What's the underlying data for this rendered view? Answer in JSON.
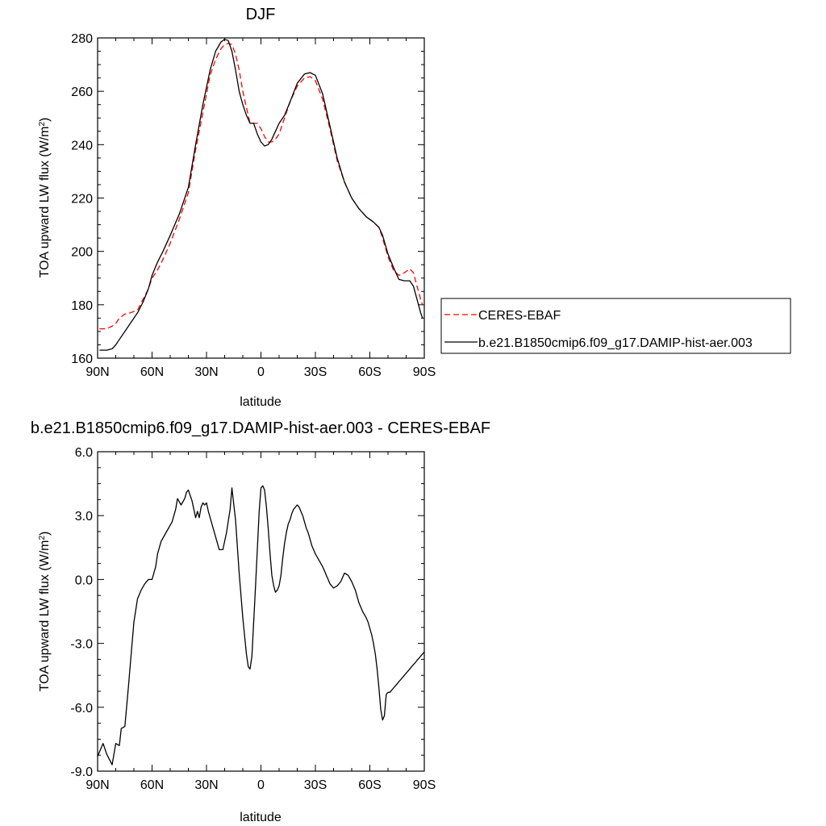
{
  "chart_data": [
    {
      "type": "line",
      "title": "DJF",
      "xlabel": "latitude",
      "ylabel": "TOA upward LW flux (W/m",
      "ylabel_sup": "2",
      "ylabel_end": ")",
      "xlim": [
        90,
        -90
      ],
      "ylim": [
        160,
        280
      ],
      "x_ticks": [
        90,
        60,
        30,
        0,
        -30,
        -60,
        -90
      ],
      "x_tick_labels": [
        "90N",
        "60N",
        "30N",
        "0",
        "30S",
        "60S",
        "90S"
      ],
      "y_ticks": [
        160,
        180,
        200,
        220,
        240,
        260,
        280
      ],
      "y_tick_labels": [
        "160",
        "180",
        "200",
        "220",
        "240",
        "260",
        "280"
      ],
      "legend_position": "right, outside",
      "series": [
        {
          "name": "CERES-EBAF",
          "color": "#ff0000",
          "dash": "dashed",
          "x": [
            89,
            85,
            82,
            80,
            78,
            75,
            72,
            70,
            68,
            65,
            62,
            60,
            57,
            54,
            50,
            45,
            40,
            36,
            32,
            28,
            25,
            22,
            20,
            18,
            16,
            14,
            12,
            10,
            8,
            6,
            4,
            2,
            0,
            -2,
            -4,
            -6,
            -8,
            -10,
            -13,
            -16,
            -20,
            -24,
            -27,
            -30,
            -34,
            -38,
            -42,
            -46,
            -50,
            -54,
            -58,
            -62,
            -65,
            -67,
            -70,
            -73,
            -76,
            -79,
            -82,
            -84,
            -86,
            -88,
            -89
          ],
          "values": [
            171,
            171,
            172,
            173,
            175,
            176.5,
            177,
            177.5,
            178,
            182,
            186,
            190,
            193,
            197,
            203,
            212,
            222,
            238,
            252,
            266,
            272,
            276,
            277.5,
            278,
            277.5,
            274,
            268,
            260,
            254,
            248,
            248,
            248,
            246,
            243,
            241,
            241,
            242,
            244,
            250,
            256,
            262,
            265,
            265.5,
            264,
            257,
            246,
            234,
            226,
            220,
            216,
            213,
            211,
            209,
            205,
            198,
            193,
            191,
            192,
            193.5,
            192,
            187,
            182,
            180
          ]
        },
        {
          "name": "b.e21.B1850cmip6.f09_g17.DAMIP-hist-aer.003",
          "color": "#000000",
          "dash": "solid",
          "x": [
            89,
            85,
            82,
            80,
            78,
            75,
            72,
            70,
            68,
            65,
            62,
            60,
            57,
            54,
            50,
            45,
            40,
            36,
            32,
            28,
            25,
            22,
            20,
            18,
            16,
            14,
            12,
            10,
            8,
            6,
            4,
            2,
            0,
            -2,
            -4,
            -6,
            -8,
            -10,
            -13,
            -16,
            -20,
            -24,
            -27,
            -30,
            -34,
            -38,
            -42,
            -46,
            -50,
            -54,
            -58,
            -62,
            -65,
            -67,
            -70,
            -73,
            -76,
            -79,
            -82,
            -84,
            -86,
            -88,
            -89
          ],
          "values": [
            163,
            163,
            163.5,
            165,
            167,
            170,
            173,
            175,
            177,
            181,
            186,
            191,
            196,
            200,
            206,
            214,
            224,
            240,
            255,
            268,
            275,
            278.5,
            279.5,
            279,
            275,
            268,
            260,
            255,
            251,
            248,
            248,
            244,
            241,
            239.5,
            240,
            242,
            245,
            248,
            251,
            256,
            263,
            266.5,
            267,
            266,
            259,
            247,
            235,
            226,
            220,
            216,
            213,
            211,
            209,
            206,
            199,
            194,
            189.5,
            189,
            189,
            187,
            182,
            177,
            175
          ]
        }
      ]
    },
    {
      "type": "line",
      "title": "b.e21.B1850cmip6.f09_g17.DAMIP-hist-aer.003 - CERES-EBAF",
      "xlabel": "latitude",
      "ylabel": "TOA upward LW flux (W/m",
      "ylabel_sup": "2",
      "ylabel_end": ")",
      "xlim": [
        90,
        -90
      ],
      "ylim": [
        -9,
        6
      ],
      "x_ticks": [
        90,
        60,
        30,
        0,
        -30,
        -60,
        -90
      ],
      "x_tick_labels": [
        "90N",
        "60N",
        "30N",
        "0",
        "30S",
        "60S",
        "90S"
      ],
      "y_ticks": [
        -9,
        -6,
        -3,
        0,
        3,
        6
      ],
      "y_tick_labels": [
        "-9.0",
        "-6.0",
        "-3.0",
        "0.0",
        "3.0",
        "6.0"
      ],
      "series": [
        {
          "name": "",
          "color": "#000000",
          "dash": "solid",
          "x": [
            90,
            87,
            85,
            82,
            80,
            78,
            77,
            75,
            73,
            72,
            70,
            68,
            66,
            64,
            62,
            60,
            58,
            57,
            55,
            53,
            51,
            49,
            47,
            46,
            44,
            42,
            41,
            40,
            38,
            37,
            36,
            35,
            34,
            33,
            32,
            31,
            30,
            29,
            27,
            25,
            23,
            21,
            19,
            17,
            16,
            14,
            12,
            10,
            8,
            7,
            6,
            5,
            4,
            3,
            2,
            1,
            0,
            -1,
            -2,
            -3,
            -4,
            -5,
            -6,
            -7,
            -8,
            -9,
            -10,
            -11,
            -12,
            -13,
            -14,
            -15,
            -16,
            -17,
            -18,
            -19,
            -20,
            -21,
            -22,
            -23,
            -24,
            -25,
            -26,
            -27,
            -28,
            -30,
            -32,
            -34,
            -35,
            -36,
            -37,
            -38,
            -40,
            -42,
            -44,
            -46,
            -48,
            -50,
            -52,
            -54,
            -56,
            -58,
            -59,
            -60,
            -61,
            -62,
            -63,
            -64,
            -65,
            -66,
            -67,
            -68,
            -69,
            -70,
            -71,
            -72,
            -73,
            -74,
            -75,
            -76,
            -77,
            -78,
            -79,
            -80,
            -81,
            -82,
            -83,
            -84,
            -85,
            -86,
            -87,
            -88,
            -89,
            -90
          ],
          "values": [
            -8.3,
            -7.7,
            -8.2,
            -8.7,
            -7.7,
            -7.8,
            -7,
            -6.9,
            -5,
            -4,
            -2,
            -0.9,
            -0.5,
            -0.2,
            0,
            0,
            0.6,
            1.2,
            1.8,
            2.1,
            2.4,
            2.7,
            3.3,
            3.8,
            3.5,
            3.8,
            4.1,
            4.2,
            3.7,
            3.3,
            2.9,
            3.2,
            2.9,
            3.4,
            3.6,
            3.5,
            3.6,
            3.2,
            2.6,
            2,
            1.4,
            1.4,
            2.2,
            3.3,
            4.3,
            2.8,
            0.3,
            -1.8,
            -3.5,
            -4.1,
            -4.2,
            -3.6,
            -2,
            -0.3,
            1.4,
            3.2,
            4.3,
            4.4,
            4.2,
            3.4,
            2.4,
            1.2,
            0.2,
            -0.3,
            -0.6,
            -0.5,
            -0.3,
            0.2,
            1,
            1.7,
            2.2,
            2.6,
            2.8,
            3.1,
            3.3,
            3.4,
            3.5,
            3.4,
            3.2,
            3,
            2.7,
            2.4,
            2.2,
            1.9,
            1.6,
            1.2,
            0.9,
            0.6,
            0.4,
            0.2,
            0,
            -0.2,
            -0.4,
            -0.3,
            -0.1,
            0.3,
            0.2,
            -0.1,
            -0.5,
            -1.1,
            -1.5,
            -1.8,
            -2,
            -2.3,
            -2.6,
            -3,
            -3.5,
            -4.2,
            -5.1,
            -6.1,
            -6.6,
            -6.4,
            -5.4,
            -5.3,
            -5.3,
            -5.2,
            -5.1,
            -5,
            -4.9,
            -4.8,
            -4.7,
            -4.6,
            -4.5,
            -4.4,
            -4.3,
            -4.2,
            -4.1,
            -4,
            -3.9,
            -3.8,
            -3.7,
            -3.6,
            -3.5,
            -3.4
          ]
        }
      ]
    }
  ]
}
